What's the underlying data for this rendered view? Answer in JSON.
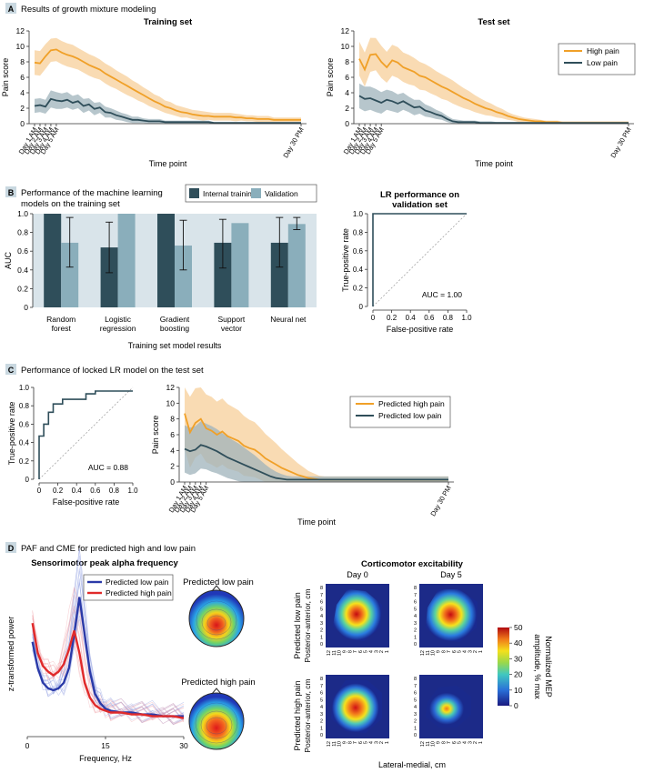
{
  "colors": {
    "orange": "#f0a028",
    "orange_band": "#f7cf9a",
    "dark": "#2f4e5a",
    "dark_band": "#9fb3bb",
    "validation": "#8aaebb",
    "panel_bg": "#d9e4ea"
  },
  "panels": {
    "A": {
      "letter": "A",
      "title": "Results of growth mixture modeling"
    },
    "B": {
      "letter": "B",
      "title_line1": "Performance of the machine learning",
      "title_line2": "models on the training set"
    },
    "C": {
      "letter": "C",
      "title": "Performance of locked LR model on the test set"
    },
    "D": {
      "letter": "D",
      "title": "PAF and CME for predicted high and low pain"
    }
  },
  "time_ticks": [
    "Day 1 AM",
    "Day 2 AM",
    "Day 3 AM",
    "Day 4 AM",
    "Day 5 AM",
    "Day 30 PM"
  ],
  "chart_data": [
    {
      "id": "A-training",
      "type": "line",
      "title": "Training set",
      "xlabel": "Time point",
      "ylabel": "Pain score",
      "ylim": [
        0,
        12
      ],
      "yticks": [
        "0",
        "2",
        "4",
        "6",
        "8",
        "10",
        "12"
      ],
      "series": [
        {
          "color": "orange",
          "values": [
            7.9,
            7.8,
            8.7,
            9.5,
            9.6,
            9.2,
            8.9,
            8.7,
            8.4,
            8.0,
            7.6,
            7.3,
            7.0,
            6.5,
            6.1,
            5.7,
            5.3,
            4.9,
            4.5,
            4.1,
            3.7,
            3.3,
            2.9,
            2.6,
            2.2,
            2.0,
            1.7,
            1.5,
            1.4,
            1.2,
            1.1,
            1.0,
            1.0,
            0.9,
            0.9,
            0.9,
            0.9,
            0.8,
            0.8,
            0.7,
            0.7,
            0.6,
            0.6,
            0.6,
            0.5,
            0.5,
            0.5,
            0.5,
            0.5,
            0.5
          ],
          "band": [
            1.6,
            1.6,
            1.6,
            1.5,
            1.5,
            1.5,
            1.5,
            1.5,
            1.4,
            1.4,
            1.4,
            1.4,
            1.3,
            1.3,
            1.3,
            1.2,
            1.2,
            1.2,
            1.1,
            1.1,
            1.0,
            1.0,
            0.9,
            0.9,
            0.8,
            0.8,
            0.7,
            0.7,
            0.6,
            0.6,
            0.6,
            0.6,
            0.5,
            0.5,
            0.5,
            0.5,
            0.5,
            0.5,
            0.4,
            0.4,
            0.4,
            0.4,
            0.4,
            0.4,
            0.3,
            0.3,
            0.3,
            0.3,
            0.3,
            0.3
          ]
        },
        {
          "color": "dark",
          "values": [
            2.3,
            2.4,
            2.2,
            3.2,
            3.0,
            2.9,
            3.1,
            2.7,
            2.9,
            2.3,
            2.5,
            1.9,
            2.1,
            1.5,
            1.4,
            1.1,
            0.9,
            0.7,
            0.5,
            0.5,
            0.4,
            0.3,
            0.3,
            0.3,
            0.2,
            0.2,
            0.2,
            0.2,
            0.2,
            0.2,
            0.2,
            0.2,
            0.2,
            0.1,
            0.1,
            0.1,
            0.1,
            0.1,
            0.1,
            0.1,
            0.1,
            0.1,
            0.1,
            0.1,
            0.1,
            0.1,
            0.1,
            0.1,
            0.1,
            0.1
          ],
          "band": [
            0.9,
            0.9,
            0.9,
            1.1,
            1.1,
            1.0,
            1.0,
            0.9,
            0.9,
            0.9,
            0.8,
            0.8,
            0.7,
            0.7,
            0.6,
            0.6,
            0.5,
            0.5,
            0.4,
            0.4,
            0.3,
            0.3,
            0.3,
            0.3,
            0.2,
            0.2,
            0.2,
            0.2,
            0.2,
            0.2,
            0.2,
            0.2,
            0.2,
            0.1,
            0.1,
            0.1,
            0.1,
            0.1,
            0.1,
            0.1,
            0.1,
            0.1,
            0.1,
            0.1,
            0.1,
            0.1,
            0.1,
            0.1,
            0.1,
            0.1
          ]
        }
      ]
    },
    {
      "id": "A-test",
      "type": "line",
      "title": "Test set",
      "xlabel": "Time point",
      "ylabel": "Pain score",
      "ylim": [
        0,
        12
      ],
      "yticks": [
        "0",
        "2",
        "4",
        "6",
        "8",
        "10",
        "12"
      ],
      "legend": [
        "High pain",
        "Low pain"
      ],
      "series": [
        {
          "name": "High pain",
          "color": "orange",
          "values": [
            8.4,
            7.0,
            8.9,
            9.0,
            8.0,
            7.3,
            8.2,
            7.9,
            7.3,
            7.0,
            6.7,
            6.2,
            6.0,
            5.6,
            5.2,
            4.8,
            4.5,
            4.1,
            3.7,
            3.3,
            3.0,
            2.6,
            2.3,
            2.0,
            1.8,
            1.5,
            1.3,
            1.0,
            0.8,
            0.6,
            0.5,
            0.4,
            0.3,
            0.3,
            0.2,
            0.2,
            0.2,
            0.1,
            0.1,
            0.1,
            0.1,
            0.1,
            0.1,
            0.1,
            0.1,
            0.1,
            0.1,
            0.1,
            0.1,
            0.1
          ],
          "band": [
            2.2,
            2.2,
            2.2,
            2.1,
            2.1,
            2.0,
            2.0,
            2.0,
            1.9,
            1.9,
            1.8,
            1.8,
            1.7,
            1.7,
            1.6,
            1.6,
            1.5,
            1.5,
            1.4,
            1.3,
            1.2,
            1.1,
            1.0,
            0.9,
            0.8,
            0.7,
            0.6,
            0.5,
            0.4,
            0.4,
            0.3,
            0.3,
            0.3,
            0.2,
            0.2,
            0.2,
            0.2,
            0.2,
            0.2,
            0.2,
            0.2,
            0.2,
            0.2,
            0.2,
            0.2,
            0.2,
            0.2,
            0.2,
            0.2,
            0.2
          ]
        },
        {
          "name": "Low pain",
          "color": "dark",
          "values": [
            3.6,
            3.2,
            3.3,
            3.0,
            2.7,
            3.1,
            2.9,
            2.6,
            2.9,
            2.5,
            2.1,
            2.2,
            1.7,
            1.5,
            1.2,
            1.0,
            0.6,
            0.3,
            0.2,
            0.2,
            0.2,
            0.2,
            0.1,
            0.1,
            0.1,
            0.1,
            0.1,
            0.1,
            0.1,
            0.1,
            0.1,
            0.1,
            0.1,
            0.1,
            0.1,
            0.1,
            0.1,
            0.1,
            0.1,
            0.1,
            0.1,
            0.1,
            0.1,
            0.1,
            0.1,
            0.1,
            0.1,
            0.1,
            0.1,
            0.1
          ],
          "band": [
            1.6,
            1.6,
            1.5,
            1.5,
            1.4,
            1.3,
            1.3,
            1.2,
            1.1,
            1.0,
            1.0,
            0.9,
            0.8,
            0.7,
            0.6,
            0.5,
            0.4,
            0.3,
            0.3,
            0.2,
            0.2,
            0.2,
            0.2,
            0.2,
            0.2,
            0.1,
            0.1,
            0.1,
            0.1,
            0.1,
            0.1,
            0.1,
            0.1,
            0.1,
            0.1,
            0.1,
            0.1,
            0.1,
            0.1,
            0.1,
            0.1,
            0.1,
            0.1,
            0.1,
            0.1,
            0.1,
            0.1,
            0.1,
            0.1,
            0.1
          ]
        }
      ]
    },
    {
      "id": "B-bars",
      "type": "bar",
      "xlabel": "Training set model results",
      "ylabel": "AUC",
      "ylim": [
        0,
        1
      ],
      "yticks": [
        "0",
        "0.2",
        "0.4",
        "0.6",
        "0.8",
        "1.0"
      ],
      "categories": [
        [
          "Random",
          "forest"
        ],
        [
          "Logistic",
          "regression"
        ],
        [
          "Gradient",
          "boosting"
        ],
        [
          "Support",
          "vector"
        ],
        [
          "Neural net"
        ]
      ],
      "legend": [
        "Internal training",
        "Validation"
      ],
      "series": [
        {
          "name": "Internal training",
          "color": "dark",
          "values": [
            1.0,
            0.64,
            1.0,
            0.69,
            0.69
          ],
          "err_low": [
            1.0,
            0.37,
            1.0,
            0.42,
            0.43
          ],
          "err_high": [
            1.0,
            0.91,
            1.0,
            0.94,
            0.96
          ]
        },
        {
          "name": "Validation",
          "color": "validation",
          "values": [
            0.69,
            1.0,
            0.66,
            0.9,
            0.89
          ],
          "err_low": [
            0.43,
            1.0,
            0.4,
            0.9,
            0.83
          ],
          "err_high": [
            0.96,
            1.0,
            0.93,
            0.9,
            0.96
          ]
        }
      ]
    },
    {
      "id": "B-roc",
      "type": "line",
      "title_line1": "LR performance on",
      "title_line2": "validation set",
      "xlabel": "False-positive rate",
      "ylabel": "True-positive rate",
      "xticks": [
        "0",
        "0.2",
        "0.4",
        "0.6",
        "0.8",
        "1.0"
      ],
      "yticks": [
        "0",
        "0.2",
        "0.4",
        "0.6",
        "0.8",
        "1.0"
      ],
      "annotation": "AUC = 1.00",
      "roc": [
        [
          0,
          0
        ],
        [
          0,
          1
        ],
        [
          1,
          1
        ]
      ]
    },
    {
      "id": "C-roc",
      "type": "line",
      "xlabel": "False-positive rate",
      "ylabel": "True-positive rate",
      "xticks": [
        "0",
        "0.2",
        "0.4",
        "0.6",
        "0.8",
        "1.0"
      ],
      "yticks": [
        "0",
        "0.2",
        "0.4",
        "0.6",
        "0.8",
        "1.0"
      ],
      "annotation": "AUC = 0.88",
      "roc": [
        [
          0,
          0
        ],
        [
          0,
          0.47
        ],
        [
          0.05,
          0.47
        ],
        [
          0.05,
          0.6
        ],
        [
          0.1,
          0.6
        ],
        [
          0.1,
          0.73
        ],
        [
          0.15,
          0.73
        ],
        [
          0.15,
          0.82
        ],
        [
          0.25,
          0.82
        ],
        [
          0.25,
          0.87
        ],
        [
          0.5,
          0.87
        ],
        [
          0.5,
          0.93
        ],
        [
          0.6,
          0.93
        ],
        [
          0.6,
          0.96
        ],
        [
          1,
          0.96
        ]
      ]
    },
    {
      "id": "C-lines",
      "type": "line",
      "xlabel": "Time point",
      "ylabel": "Pain score",
      "ylim": [
        0,
        12
      ],
      "yticks": [
        "0",
        "2",
        "4",
        "6",
        "8",
        "10",
        "12"
      ],
      "legend": [
        "Predicted high pain",
        "Predicted low pain"
      ],
      "series": [
        {
          "name": "Predicted high pain",
          "color": "orange",
          "values": [
            8.7,
            6.3,
            7.5,
            8.0,
            6.8,
            6.5,
            6.0,
            6.4,
            5.8,
            5.5,
            5.2,
            4.6,
            4.3,
            4.1,
            3.6,
            3.0,
            2.6,
            2.2,
            1.8,
            1.5,
            1.2,
            0.9,
            0.7,
            0.5,
            0.4,
            0.3,
            0.3,
            0.3,
            0.3,
            0.3,
            0.3,
            0.3,
            0.3,
            0.3,
            0.3,
            0.3,
            0.3,
            0.3,
            0.3,
            0.3,
            0.3,
            0.3,
            0.3,
            0.3,
            0.3,
            0.3,
            0.3,
            0.3,
            0.3,
            0.3
          ],
          "band": [
            4.5,
            4.5,
            4.4,
            4.4,
            4.3,
            4.3,
            4.2,
            4.2,
            4.1,
            4.0,
            3.9,
            3.8,
            3.6,
            3.5,
            3.3,
            3.1,
            2.9,
            2.7,
            2.4,
            2.1,
            1.8,
            1.5,
            1.2,
            0.9,
            0.7,
            0.5,
            0.4,
            0.4,
            0.4,
            0.4,
            0.4,
            0.4,
            0.4,
            0.4,
            0.4,
            0.4,
            0.4,
            0.4,
            0.4,
            0.4,
            0.4,
            0.4,
            0.4,
            0.4,
            0.4,
            0.4,
            0.4,
            0.4,
            0.4,
            0.4
          ]
        },
        {
          "name": "Predicted low pain",
          "color": "dark",
          "values": [
            4.2,
            3.9,
            4.1,
            4.7,
            4.5,
            4.2,
            3.9,
            3.5,
            3.1,
            2.8,
            2.5,
            2.2,
            1.9,
            1.6,
            1.3,
            1.0,
            0.7,
            0.5,
            0.4,
            0.3,
            0.3,
            0.3,
            0.3,
            0.3,
            0.3,
            0.3,
            0.3,
            0.3,
            0.3,
            0.3,
            0.3,
            0.3,
            0.3,
            0.3,
            0.3,
            0.3,
            0.3,
            0.3,
            0.3,
            0.3,
            0.3,
            0.3,
            0.3,
            0.3,
            0.3,
            0.3,
            0.3,
            0.3,
            0.3,
            0.3
          ],
          "band": [
            3.0,
            3.0,
            3.0,
            3.0,
            2.9,
            2.9,
            2.8,
            2.7,
            2.6,
            2.5,
            2.4,
            2.2,
            2.0,
            1.8,
            1.5,
            1.2,
            1.0,
            0.8,
            0.6,
            0.5,
            0.4,
            0.4,
            0.4,
            0.4,
            0.4,
            0.4,
            0.4,
            0.4,
            0.4,
            0.4,
            0.4,
            0.4,
            0.4,
            0.4,
            0.4,
            0.4,
            0.4,
            0.4,
            0.4,
            0.4,
            0.4,
            0.4,
            0.4,
            0.4,
            0.4,
            0.4,
            0.4,
            0.4,
            0.4,
            0.4
          ]
        }
      ]
    },
    {
      "id": "D-paf",
      "type": "line",
      "title": "Sensorimotor peak alpha frequency",
      "xlabel": "Frequency, Hz",
      "ylabel": "z-transformed power",
      "xticks": [
        "0",
        "15",
        "30"
      ],
      "legend": [
        "Predicted low pain",
        "Predicted high pain"
      ],
      "series": [
        {
          "name": "Predicted low pain",
          "color": "#2a3aa8",
          "freq": [
            1,
            2,
            3,
            4,
            5,
            6,
            7,
            8,
            9,
            10,
            11,
            12,
            13,
            14,
            15,
            16,
            18,
            20,
            22,
            24,
            26,
            28,
            30
          ],
          "values": [
            2.4,
            1.7,
            1.3,
            1.15,
            1.1,
            1.15,
            1.3,
            1.7,
            2.6,
            3.6,
            2.6,
            1.6,
            1.0,
            0.75,
            0.6,
            0.55,
            0.5,
            0.5,
            0.45,
            0.45,
            0.4,
            0.4,
            0.4
          ]
        },
        {
          "name": "Predicted high pain",
          "color": "#e02a2a",
          "freq": [
            1,
            2,
            3,
            4,
            5,
            6,
            7,
            8,
            9,
            10,
            11,
            12,
            13,
            14,
            15,
            16,
            18,
            20,
            22,
            24,
            26,
            28,
            30
          ],
          "values": [
            2.9,
            2.1,
            1.75,
            1.6,
            1.5,
            1.6,
            1.8,
            2.2,
            2.7,
            2.1,
            1.3,
            0.9,
            0.7,
            0.6,
            0.55,
            0.5,
            0.5,
            0.45,
            0.45,
            0.4,
            0.4,
            0.4,
            0.35
          ]
        }
      ]
    }
  ],
  "topo": {
    "low_label": "Predicted low pain",
    "high_label": "Predicted high pain"
  },
  "cme": {
    "title": "Corticomotor excitability",
    "col_day0": "Day 0",
    "col_day5": "Day 5",
    "row_low": "Predicted low pain",
    "row_high": "Predicted high pain",
    "y_axis": "Posterior-anterior, cm",
    "x_axis": "Lateral-medial, cm",
    "colorbar_label_line1": "Normalized MEP",
    "colorbar_label_line2": "amplitude, % max",
    "colorbar_ticks": [
      "50",
      "40",
      "30",
      "20",
      "10",
      "0"
    ],
    "grid_yticks": [
      "8",
      "7",
      "6",
      "5",
      "4",
      "3",
      "2",
      "1",
      "0"
    ],
    "grid_xticks": [
      "12",
      "11",
      "10",
      "9",
      "8",
      "7",
      "6",
      "5",
      "4",
      "3",
      "2",
      "1"
    ]
  }
}
